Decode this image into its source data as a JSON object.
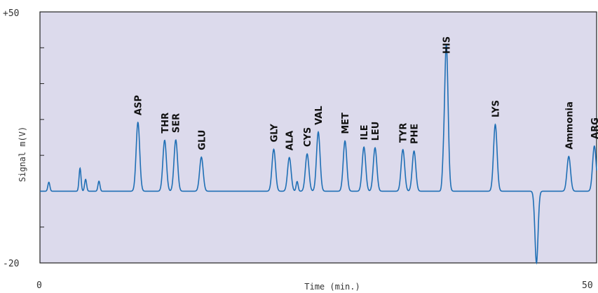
{
  "chart_data": {
    "type": "line",
    "title": "",
    "xlabel": "Time (min.)",
    "ylabel": "Signal m(V)",
    "xlim": [
      0,
      50
    ],
    "ylim": [
      -20,
      50
    ],
    "x_tick_labels": [
      "0",
      "50"
    ],
    "y_tick_labels": [
      "+50",
      "-20"
    ],
    "grid": false,
    "baseline": 0,
    "colors": {
      "plot_background": "#dcdaec",
      "line": "#1f6fb5",
      "axis": "#222222"
    },
    "peaks": [
      {
        "label": "ASP",
        "x": 8.8,
        "y": 19.2
      },
      {
        "label": "THR",
        "x": 11.2,
        "y": 14.2
      },
      {
        "label": "SER",
        "x": 12.2,
        "y": 14.3
      },
      {
        "label": "GLU",
        "x": 14.5,
        "y": 9.5
      },
      {
        "label": "GLY",
        "x": 21.0,
        "y": 11.7
      },
      {
        "label": "ALA",
        "x": 22.4,
        "y": 9.4
      },
      {
        "label": "CYS",
        "x": 24.0,
        "y": 10.4
      },
      {
        "label": "VAL",
        "x": 25.0,
        "y": 16.5
      },
      {
        "label": "MET",
        "x": 27.4,
        "y": 14.0
      },
      {
        "label": "ILE",
        "x": 29.1,
        "y": 12.3
      },
      {
        "label": "LEU",
        "x": 30.1,
        "y": 12.1
      },
      {
        "label": "TYR",
        "x": 32.6,
        "y": 11.6
      },
      {
        "label": "PHE",
        "x": 33.6,
        "y": 11.2
      },
      {
        "label": "HIS",
        "x": 36.5,
        "y": 41.0
      },
      {
        "label": "LYS",
        "x": 40.9,
        "y": 18.6
      },
      {
        "label": "Ammonia",
        "x": 47.5,
        "y": 9.7
      },
      {
        "label": "ARG",
        "x": 49.8,
        "y": 12.6
      }
    ],
    "minor_peaks": [
      {
        "x": 0.8,
        "y": 2.5
      },
      {
        "x": 3.6,
        "y": 6.4
      },
      {
        "x": 4.1,
        "y": 3.3
      },
      {
        "x": 5.3,
        "y": 2.8
      },
      {
        "x": 23.1,
        "y": 2.7
      },
      {
        "x": 36.2,
        "y": 3.2
      }
    ],
    "negative_peaks": [
      {
        "x": 44.6,
        "y": -20.0
      }
    ]
  }
}
